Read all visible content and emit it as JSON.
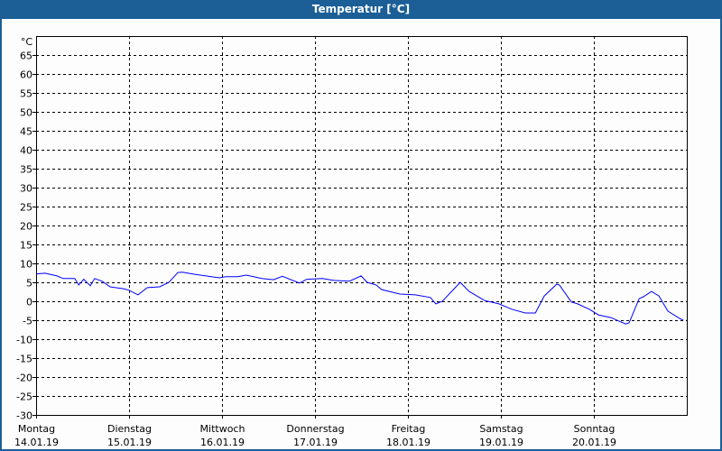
{
  "window": {
    "title": "Temperatur [°C]"
  },
  "chart_data": {
    "type": "line",
    "title": "Temperatur [°C]",
    "ylabel": "°C",
    "xlabel": "",
    "ylim": [
      -30,
      70
    ],
    "yticks": [
      65,
      60,
      55,
      50,
      45,
      40,
      35,
      30,
      25,
      20,
      15,
      10,
      5,
      0,
      -5,
      -10,
      -15,
      -20,
      -25,
      -30
    ],
    "xlim_hours": [
      0,
      168
    ],
    "grid": true,
    "x_categories": [
      {
        "day": "Montag",
        "date": "14.01.19"
      },
      {
        "day": "Dienstag",
        "date": "15.01.19"
      },
      {
        "day": "Mittwoch",
        "date": "16.01.19"
      },
      {
        "day": "Donnerstag",
        "date": "17.01.19"
      },
      {
        "day": "Freitag",
        "date": "18.01.19"
      },
      {
        "day": "Samstag",
        "date": "19.01.19"
      },
      {
        "day": "Sonntag",
        "date": "20.01.19"
      }
    ],
    "series": [
      {
        "name": "Temperatur",
        "color": "#0000ff",
        "points_hour_value": [
          [
            0,
            7.2
          ],
          [
            2.3,
            7.4
          ],
          [
            5.4,
            6.7
          ],
          [
            7,
            6.0
          ],
          [
            10,
            6.0
          ],
          [
            11,
            4.3
          ],
          [
            12.3,
            5.8
          ],
          [
            14,
            4.1
          ],
          [
            15.1,
            6.0
          ],
          [
            17,
            5.3
          ],
          [
            19.1,
            3.8
          ],
          [
            22.6,
            3.3
          ],
          [
            24,
            2.9
          ],
          [
            26.3,
            1.7
          ],
          [
            28.7,
            3.6
          ],
          [
            31.9,
            3.8
          ],
          [
            34.3,
            5.0
          ],
          [
            36.6,
            7.6
          ],
          [
            37.7,
            7.7
          ],
          [
            41.2,
            7.1
          ],
          [
            47.3,
            6.2
          ],
          [
            48.9,
            6.5
          ],
          [
            52,
            6.5
          ],
          [
            54.3,
            6.9
          ],
          [
            58.3,
            6.0
          ],
          [
            61.3,
            5.7
          ],
          [
            63.6,
            6.6
          ],
          [
            68,
            4.8
          ],
          [
            69.9,
            5.8
          ],
          [
            73.9,
            6.0
          ],
          [
            76.9,
            5.5
          ],
          [
            80.9,
            5.3
          ],
          [
            83.9,
            6.7
          ],
          [
            85.5,
            5.0
          ],
          [
            87.8,
            4.3
          ],
          [
            89.2,
            3.1
          ],
          [
            93.9,
            1.9
          ],
          [
            97.9,
            1.7
          ],
          [
            101.8,
            1.0
          ],
          [
            103.2,
            -0.7
          ],
          [
            104.9,
            0
          ],
          [
            109.5,
            5.0
          ],
          [
            111.8,
            2.6
          ],
          [
            115.8,
            0.2
          ],
          [
            119.5,
            -0.7
          ],
          [
            122.8,
            -2.1
          ],
          [
            126.3,
            -3.1
          ],
          [
            128.9,
            -3.1
          ],
          [
            131.2,
            1.4
          ],
          [
            134.4,
            4.5
          ],
          [
            135.1,
            4.3
          ],
          [
            138.2,
            -0.2
          ],
          [
            139.8,
            -0.7
          ],
          [
            142.8,
            -2.1
          ],
          [
            145.2,
            -3.6
          ],
          [
            148.4,
            -4.3
          ],
          [
            152.2,
            -6.0
          ],
          [
            153.1,
            -5.7
          ],
          [
            155.7,
            0.7
          ],
          [
            156.8,
            1.2
          ],
          [
            158.9,
            2.6
          ],
          [
            160.8,
            1.4
          ],
          [
            163.1,
            -2.6
          ],
          [
            166.1,
            -4.5
          ],
          [
            167.1,
            -5.0
          ]
        ]
      }
    ]
  }
}
